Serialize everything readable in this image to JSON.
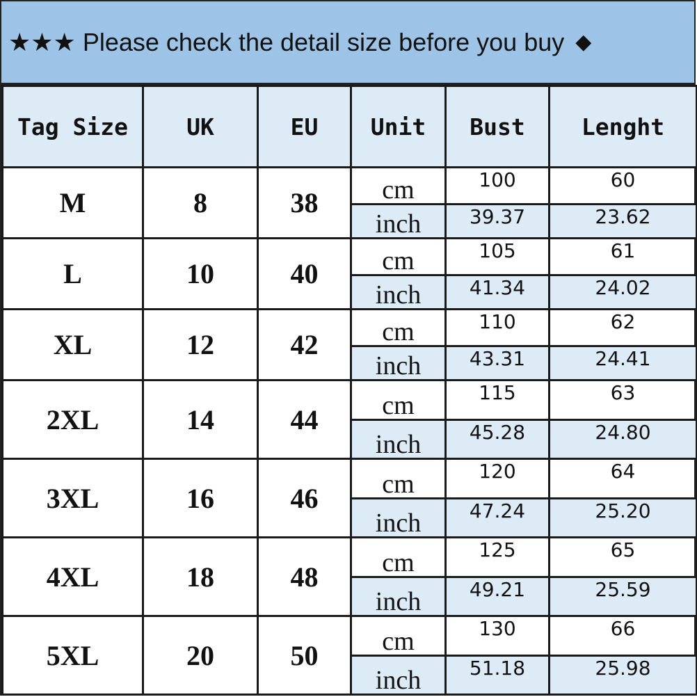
{
  "title": {
    "stars": "★★★",
    "text": "Please check the detail size before you buy",
    "diamond": "◆"
  },
  "colors": {
    "title_bg": "#9dc3e6",
    "header_bg": "#ddebf7",
    "border": "#1a1a1a"
  },
  "headers": [
    "Tag Size",
    "UK",
    "EU",
    "Unit",
    "Bust",
    "Lenght"
  ],
  "rows": [
    {
      "tag": "M",
      "uk": "8",
      "eu": "38",
      "cm": {
        "unit": "cm",
        "bust": "100",
        "length": "60"
      },
      "inch": {
        "unit": "inch",
        "bust": "39.37",
        "length": "23.62"
      }
    },
    {
      "tag": "L",
      "uk": "10",
      "eu": "40",
      "cm": {
        "unit": "cm",
        "bust": "105",
        "length": "61"
      },
      "inch": {
        "unit": "inch",
        "bust": "41.34",
        "length": "24.02"
      }
    },
    {
      "tag": "XL",
      "uk": "12",
      "eu": "42",
      "cm": {
        "unit": "cm",
        "bust": "110",
        "length": "62"
      },
      "inch": {
        "unit": "inch",
        "bust": "43.31",
        "length": "24.41"
      }
    },
    {
      "tag": "2XL",
      "uk": "14",
      "eu": "44",
      "cm": {
        "unit": "cm",
        "bust": "115",
        "length": "63"
      },
      "inch": {
        "unit": "inch",
        "bust": "45.28",
        "length": "24.80"
      }
    },
    {
      "tag": "3XL",
      "uk": "16",
      "eu": "46",
      "cm": {
        "unit": "cm",
        "bust": "120",
        "length": "64"
      },
      "inch": {
        "unit": "inch",
        "bust": "47.24",
        "length": "25.20"
      }
    },
    {
      "tag": "4XL",
      "uk": "18",
      "eu": "48",
      "cm": {
        "unit": "cm",
        "bust": "125",
        "length": "65"
      },
      "inch": {
        "unit": "inch",
        "bust": "49.21",
        "length": "25.59"
      }
    },
    {
      "tag": "5XL",
      "uk": "20",
      "eu": "50",
      "cm": {
        "unit": "cm",
        "bust": "130",
        "length": "66"
      },
      "inch": {
        "unit": "inch",
        "bust": "51.18",
        "length": "25.98"
      }
    }
  ]
}
